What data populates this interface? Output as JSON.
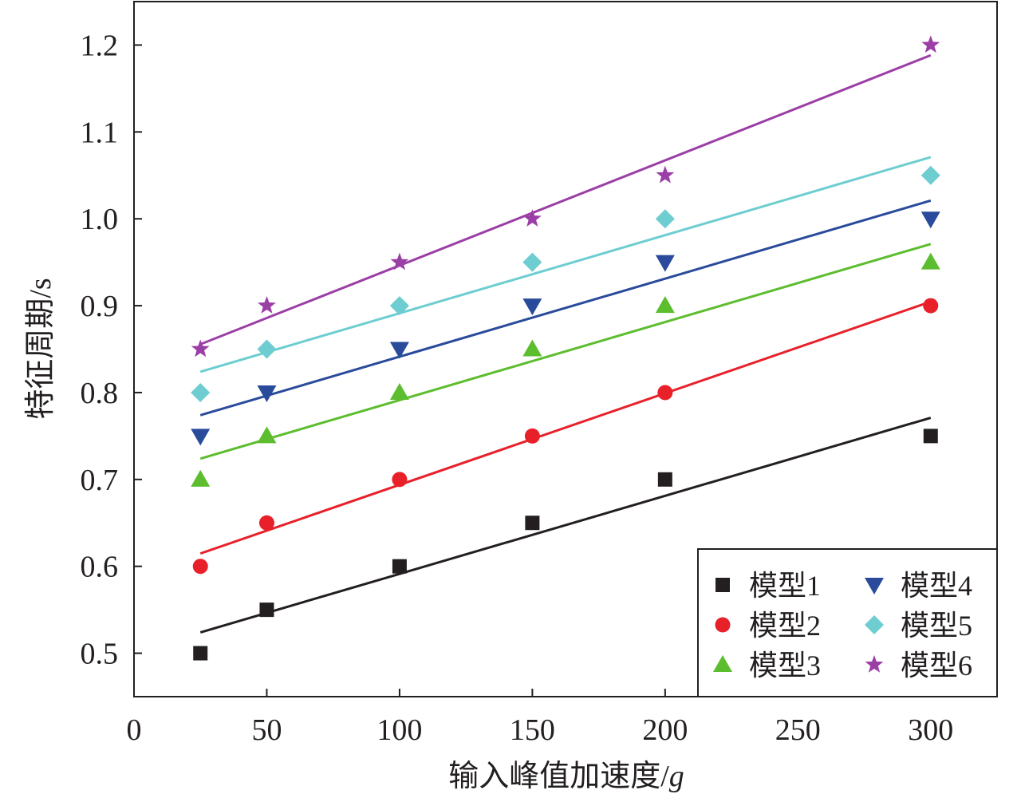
{
  "chart_data": {
    "type": "scatter",
    "title": "",
    "xlabel": "输入峰值加速度/",
    "xlabel_italic_unit": "g",
    "ylabel": "特征周期/s",
    "xlim": [
      0,
      325
    ],
    "ylim": [
      0.45,
      1.25
    ],
    "xticks": [
      0,
      50,
      100,
      150,
      200,
      250,
      300
    ],
    "xtick_labels": [
      "0",
      "50",
      "100",
      "150",
      "200",
      "250",
      "300"
    ],
    "yticks": [
      0.5,
      0.6,
      0.7,
      0.8,
      0.9,
      1.0,
      1.1,
      1.2
    ],
    "ytick_labels": [
      "0.5",
      "0.6",
      "0.7",
      "0.8",
      "0.9",
      "1.0",
      "1.1",
      "1.2"
    ],
    "grid": false,
    "legend_position": "bottom-right",
    "x": [
      25,
      50,
      100,
      150,
      200,
      300
    ],
    "fit": "linear",
    "series": [
      {
        "name": "模型1",
        "marker": "square",
        "color": "#231f20",
        "values": [
          0.5,
          0.55,
          0.6,
          0.65,
          0.7,
          0.75
        ]
      },
      {
        "name": "模型2",
        "marker": "circle",
        "color": "#e8202a",
        "values": [
          0.6,
          0.65,
          0.7,
          0.75,
          0.8,
          0.9
        ]
      },
      {
        "name": "模型3",
        "marker": "triangle-up",
        "color": "#5cbd2e",
        "values": [
          0.7,
          0.75,
          0.8,
          0.85,
          0.9,
          0.95
        ]
      },
      {
        "name": "模型4",
        "marker": "triangle-down",
        "color": "#2a4b9b",
        "values": [
          0.75,
          0.8,
          0.85,
          0.9,
          0.95,
          1.0
        ]
      },
      {
        "name": "模型5",
        "marker": "diamond",
        "color": "#6dcdd0",
        "values": [
          0.8,
          0.85,
          0.9,
          0.95,
          1.0,
          1.05
        ]
      },
      {
        "name": "模型6",
        "marker": "star",
        "color": "#9b3ea6",
        "values": [
          0.85,
          0.9,
          0.95,
          1.0,
          1.05,
          1.2
        ]
      }
    ]
  }
}
